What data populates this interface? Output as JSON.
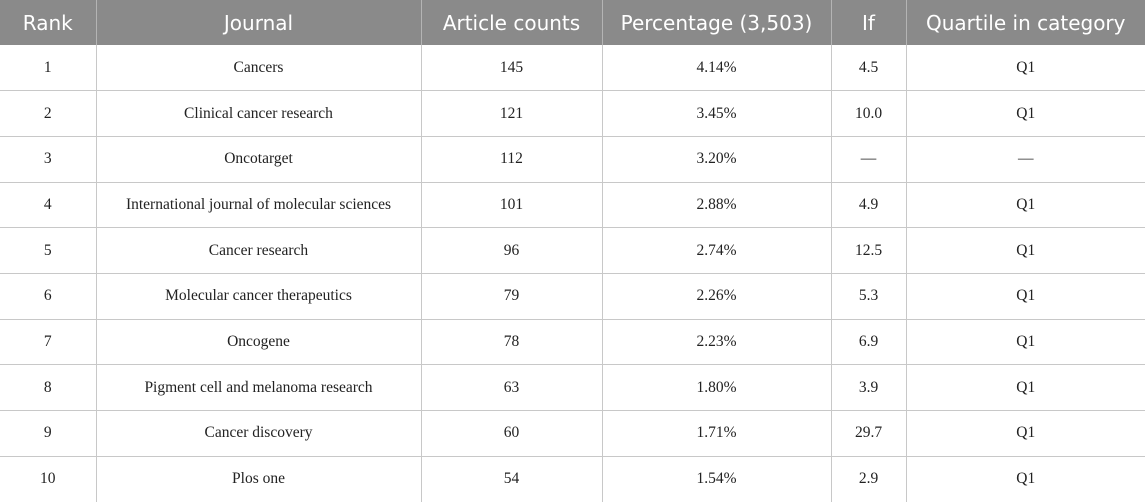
{
  "table": {
    "headers": [
      "Rank",
      "Journal",
      "Article counts",
      "Percentage (3,503)",
      "If",
      "Quartile in category"
    ],
    "rows": [
      [
        "1",
        "Cancers",
        "145",
        "4.14%",
        "4.5",
        "Q1"
      ],
      [
        "2",
        "Clinical cancer research",
        "121",
        "3.45%",
        "10.0",
        "Q1"
      ],
      [
        "3",
        "Oncotarget",
        "112",
        "3.20%",
        "—",
        "—"
      ],
      [
        "4",
        "International journal of molecular sciences",
        "101",
        "2.88%",
        "4.9",
        "Q1"
      ],
      [
        "5",
        "Cancer research",
        "96",
        "2.74%",
        "12.5",
        "Q1"
      ],
      [
        "6",
        "Molecular cancer therapeutics",
        "79",
        "2.26%",
        "5.3",
        "Q1"
      ],
      [
        "7",
        "Oncogene",
        "78",
        "2.23%",
        "6.9",
        "Q1"
      ],
      [
        "8",
        "Pigment cell and melanoma research",
        "63",
        "1.80%",
        "3.9",
        "Q1"
      ],
      [
        "9",
        "Cancer discovery",
        "60",
        "1.71%",
        "29.7",
        "Q1"
      ],
      [
        "10",
        "Plos one",
        "54",
        "1.54%",
        "2.9",
        "Q1"
      ]
    ]
  },
  "colors": {
    "header_background": "#8a8a8a",
    "header_text": "#ffffff",
    "grid_lines": "#c8c8c8"
  }
}
